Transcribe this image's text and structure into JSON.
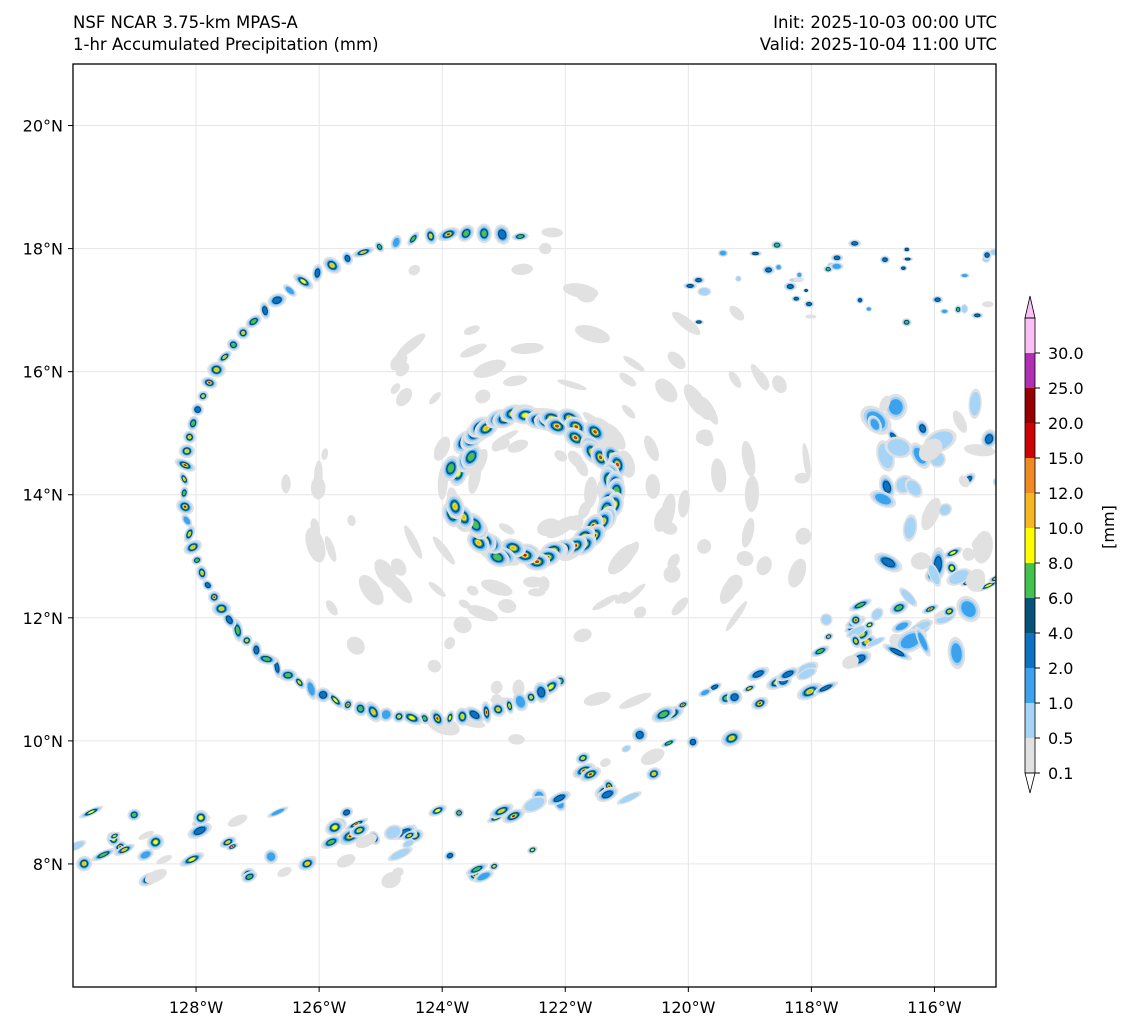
{
  "header": {
    "model": "NSF NCAR 3.75-km MPAS-A",
    "field": "1-hr Accumulated Precipitation (mm)",
    "init": "Init: 2025-10-03 00:00 UTC",
    "valid": "Valid: 2025-10-04 11:00 UTC"
  },
  "map": {
    "lon_range": [
      -130,
      -115
    ],
    "lat_range": [
      6,
      21
    ],
    "lon_ticks": [
      {
        "value": -128,
        "label": "128°W"
      },
      {
        "value": -126,
        "label": "126°W"
      },
      {
        "value": -124,
        "label": "124°W"
      },
      {
        "value": -122,
        "label": "122°W"
      },
      {
        "value": -120,
        "label": "120°W"
      },
      {
        "value": -118,
        "label": "118°W"
      },
      {
        "value": -116,
        "label": "116°W"
      }
    ],
    "lat_ticks": [
      {
        "value": 8,
        "label": "8°N"
      },
      {
        "value": 10,
        "label": "10°N"
      },
      {
        "value": 12,
        "label": "12°N"
      },
      {
        "value": 14,
        "label": "14°N"
      },
      {
        "value": 16,
        "label": "16°N"
      },
      {
        "value": 18,
        "label": "18°N"
      },
      {
        "value": 20,
        "label": "20°N"
      }
    ],
    "grid": true,
    "storm_center": {
      "lon": -122.5,
      "lat": 14.1
    }
  },
  "colorbar": {
    "unit_label": "[mm]",
    "extend": "both",
    "levels": [
      "0.1",
      "0.5",
      "1.0",
      "2.0",
      "4.0",
      "6.0",
      "8.0",
      "10.0",
      "12.0",
      "15.0",
      "20.0",
      "25.0",
      "30.0"
    ],
    "colors": [
      "#e1e1e1",
      "#a6d4f7",
      "#3ba3ee",
      "#0e71c2",
      "#07537a",
      "#43c34d",
      "#ffff00",
      "#f8b623",
      "#f08a24",
      "#cc0404",
      "#960000",
      "#b02fb4",
      "#f8c0f3"
    ]
  }
}
